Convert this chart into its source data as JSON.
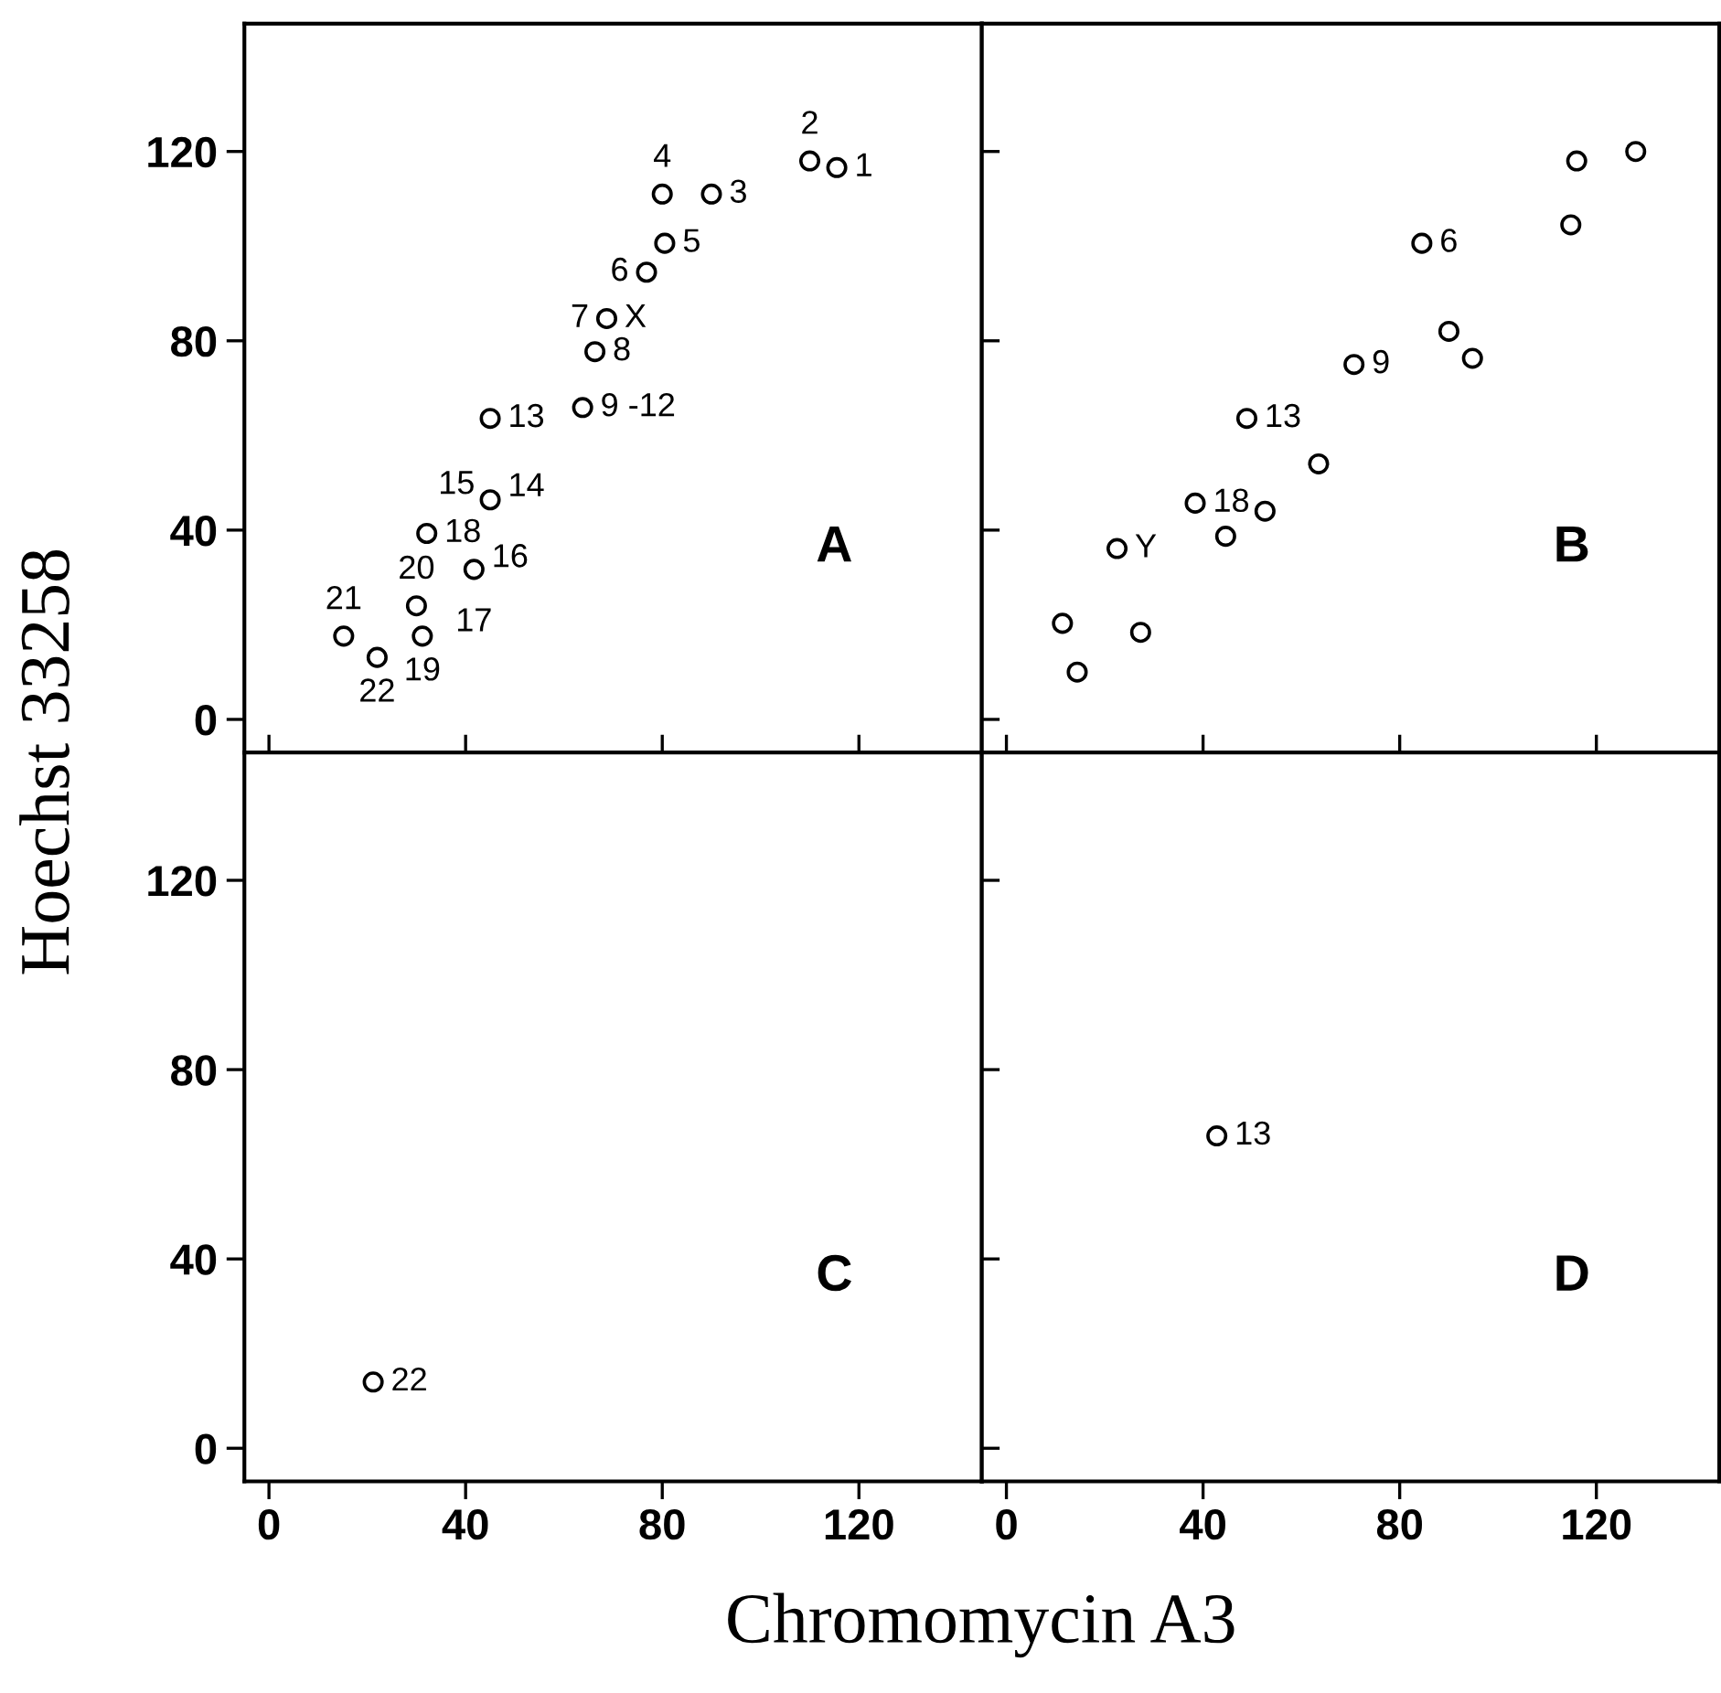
{
  "chart_data": [
    {
      "type": "scatter",
      "ylabel": "Hoechst 33258",
      "xlim": [
        -5,
        145
      ],
      "ylim": [
        -7,
        147
      ],
      "xticks": [
        0,
        40,
        80,
        120
      ],
      "yticks": [
        0,
        40,
        80,
        120
      ],
      "tick_labels": "y",
      "marker": "circle",
      "grid": false,
      "series": [
        {
          "color": "#000000",
          "x": [
            115.5,
            110,
            90,
            80,
            80.5,
            76.8,
            68.7,
            66.3,
            63.8,
            45,
            45,
            41.7,
            32.1,
            30,
            31.2,
            15.2,
            22
          ],
          "values": [
            116.6,
            118,
            111,
            111,
            100.6,
            94.5,
            84.7,
            77.7,
            65.9,
            63.6,
            46.4,
            31.7,
            39.3,
            24,
            17.6,
            17.6,
            13.1
          ]
        }
      ],
      "annotations": [
        "A",
        {
          "text": "1",
          "x": 115.5,
          "y": 116.6
        },
        {
          "text": "2",
          "x": 110,
          "y": 118
        },
        {
          "text": "3",
          "x": 90,
          "y": 111
        },
        {
          "text": "4",
          "x": 80,
          "y": 111
        },
        {
          "text": "5",
          "x": 80.5,
          "y": 100.6
        },
        {
          "text": "6",
          "x": 76.8,
          "y": 94.5
        },
        {
          "text": "X",
          "x": 68.7,
          "y": 84.7
        },
        {
          "text": "7",
          "x": 68.7,
          "y": 84.7
        },
        {
          "text": "8",
          "x": 66.3,
          "y": 77.7
        },
        {
          "text": "9 -12",
          "x": 63.8,
          "y": 65.9
        },
        {
          "text": "13",
          "x": 45,
          "y": 63.6
        },
        {
          "text": "14",
          "x": 45,
          "y": 49
        },
        {
          "text": "15",
          "x": 45,
          "y": 43
        },
        {
          "text": "16",
          "x": 41.7,
          "y": 34
        },
        {
          "text": "17",
          "x": 41.7,
          "y": 28
        },
        {
          "text": "18",
          "x": 32.1,
          "y": 39.3
        },
        {
          "text": "20",
          "x": 30,
          "y": 24
        },
        {
          "text": "19",
          "x": 31.2,
          "y": 17.6
        },
        {
          "text": "21",
          "x": 15.2,
          "y": 17.6
        },
        {
          "text": "22",
          "x": 22,
          "y": 13.1
        }
      ]
    },
    {
      "type": "scatter",
      "xlim": [
        -5,
        145
      ],
      "ylim": [
        -7,
        147
      ],
      "xticks": [
        0,
        40,
        80,
        120
      ],
      "yticks": [
        0,
        40,
        80,
        120
      ],
      "tick_labels": false,
      "marker": "circle",
      "grid": false,
      "series": [
        {
          "color": "#000000",
          "x": [
            128,
            114.8,
            116,
            84.5,
            90,
            94.8,
            70.7,
            48.9,
            63.5,
            52.6,
            44.6,
            38.4,
            22.5,
            27.3,
            11.4,
            14.4
          ],
          "values": [
            120,
            104.5,
            118,
            100.6,
            82,
            76.3,
            75,
            63.6,
            54,
            44,
            38.7,
            45.7,
            36.1,
            18.4,
            20.3,
            10
          ]
        }
      ],
      "annotations": [
        "B",
        {
          "text": "6",
          "x": 84.5,
          "y": 100.6
        },
        {
          "text": "9",
          "x": 70.7,
          "y": 75
        },
        {
          "text": "13",
          "x": 48.9,
          "y": 63.6
        },
        {
          "text": "18",
          "x": 38.4,
          "y": 45.7
        },
        {
          "text": "Y",
          "x": 22.5,
          "y": 36.1
        }
      ]
    },
    {
      "type": "scatter",
      "xlabel": "Chromomycin A3",
      "xlim": [
        -5,
        145
      ],
      "ylim": [
        -7,
        147
      ],
      "xticks": [
        0,
        40,
        80,
        120
      ],
      "yticks": [
        0,
        40,
        80,
        120
      ],
      "marker": "circle",
      "grid": false,
      "series": [
        {
          "color": "#000000",
          "x": [
            21.2
          ],
          "values": [
            14
          ]
        }
      ],
      "annotations": [
        "C",
        {
          "text": "22",
          "x": 21.2,
          "y": 14
        }
      ]
    },
    {
      "type": "scatter",
      "xlim": [
        -5,
        145
      ],
      "ylim": [
        -7,
        147
      ],
      "xticks": [
        0,
        40,
        80,
        120
      ],
      "yticks": [
        0,
        40,
        80,
        120
      ],
      "tick_labels": "x",
      "marker": "circle",
      "grid": false,
      "series": [
        {
          "color": "#000000",
          "x": [
            42.8
          ],
          "values": [
            66
          ]
        }
      ],
      "annotations": [
        "D",
        {
          "text": "13",
          "x": 42.8,
          "y": 66
        }
      ]
    }
  ]
}
